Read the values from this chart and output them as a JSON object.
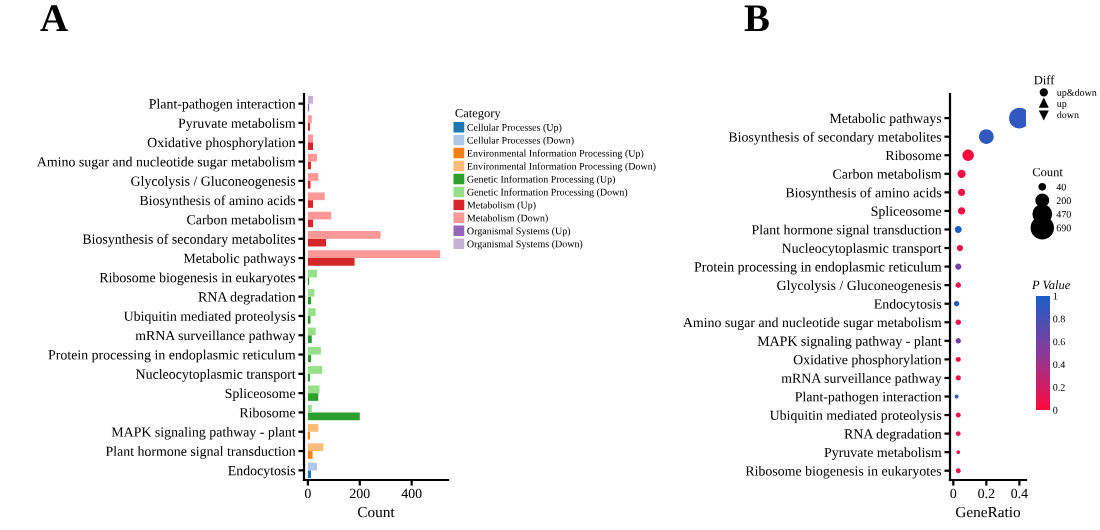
{
  "chart_data": [
    {
      "type": "bar",
      "title": "A",
      "orientation": "horizontal",
      "xlabel": "Count",
      "legend_title": "Category",
      "legend": "right",
      "categories": [
        "Plant-pathogen interaction",
        "Pyruvate metabolism",
        "Oxidative phosphorylation",
        "Amino sugar and nucleotide sugar metabolism",
        "Glycolysis / Gluconeogenesis",
        "Biosynthesis of amino acids",
        "Carbon metabolism",
        "Biosynthesis of secondary metabolites",
        "Metabolic pathways",
        "Ribosome biogenesis in eukaryotes",
        "RNA degradation",
        "Ubiquitin mediated proteolysis",
        "mRNA surveillance pathway",
        "Protein processing in endoplasmic reticulum",
        "Nucleocytoplasmic transport",
        "Spliceosome",
        "Ribosome",
        "MAPK signaling pathway - plant",
        "Plant hormone signal transduction",
        "Endocytosis"
      ],
      "series": [
        {
          "name": "Cellular Processes (Up)",
          "color": "#1f77b4",
          "values": [
            null,
            null,
            null,
            null,
            null,
            null,
            null,
            null,
            null,
            null,
            null,
            null,
            null,
            null,
            null,
            null,
            null,
            null,
            null,
            12
          ]
        },
        {
          "name": "Cellular Processes (Down)",
          "color": "#aec7e8",
          "values": [
            null,
            null,
            null,
            null,
            null,
            null,
            null,
            null,
            null,
            null,
            null,
            null,
            null,
            null,
            null,
            null,
            null,
            null,
            null,
            35
          ]
        },
        {
          "name": "Environmental Information Processing (Up)",
          "color": "#ff7f0e",
          "values": [
            null,
            null,
            null,
            null,
            null,
            null,
            null,
            null,
            null,
            null,
            null,
            null,
            null,
            null,
            null,
            null,
            null,
            8,
            18,
            null
          ]
        },
        {
          "name": "Environmental Information Processing (Down)",
          "color": "#ffbb78",
          "values": [
            null,
            null,
            null,
            null,
            null,
            null,
            null,
            null,
            null,
            null,
            null,
            null,
            null,
            null,
            null,
            null,
            null,
            40,
            60,
            null
          ]
        },
        {
          "name": "Genetic Information Processing (Up)",
          "color": "#2ca02c",
          "values": [
            null,
            null,
            null,
            null,
            null,
            null,
            null,
            null,
            null,
            5,
            12,
            10,
            15,
            12,
            8,
            40,
            200,
            null,
            null,
            null
          ]
        },
        {
          "name": "Genetic Information Processing (Down)",
          "color": "#98df8a",
          "values": [
            null,
            null,
            null,
            null,
            null,
            null,
            null,
            null,
            null,
            35,
            25,
            30,
            30,
            50,
            55,
            45,
            15,
            null,
            null,
            null
          ]
        },
        {
          "name": "Metabolism (Up)",
          "color": "#d62728",
          "values": [
            null,
            8,
            20,
            12,
            10,
            20,
            20,
            70,
            180,
            null,
            null,
            null,
            null,
            null,
            null,
            null,
            null,
            null,
            null,
            null
          ]
        },
        {
          "name": "Metabolism (Down)",
          "color": "#ff9896",
          "values": [
            null,
            15,
            20,
            35,
            40,
            65,
            90,
            280,
            510,
            null,
            null,
            null,
            null,
            null,
            null,
            null,
            null,
            null,
            null,
            null
          ]
        },
        {
          "name": "Organismal Systems (Up)",
          "color": "#9467bd",
          "values": [
            5,
            null,
            null,
            null,
            null,
            null,
            null,
            null,
            null,
            null,
            null,
            null,
            null,
            null,
            null,
            null,
            null,
            null,
            null,
            null
          ]
        },
        {
          "name": "Organismal Systems (Down)",
          "color": "#c5b0d5",
          "values": [
            20,
            null,
            null,
            null,
            null,
            null,
            null,
            null,
            null,
            null,
            null,
            null,
            null,
            null,
            null,
            null,
            null,
            null,
            null,
            null
          ]
        }
      ],
      "xlim": [
        -15,
        540
      ],
      "xticks": [
        0,
        200,
        400
      ]
    },
    {
      "type": "scatter",
      "title": "B",
      "orientation": "horizontal",
      "xlabel": "GeneRatio",
      "legend_title": "Diff",
      "clabel": "P Value",
      "legend": "right",
      "categories": [
        "Metabolic pathways",
        "Biosynthesis of secondary metabolites",
        "Ribosome",
        "Carbon metabolism",
        "Biosynthesis of amino acids",
        "Spliceosome",
        "Plant hormone signal transduction",
        "Nucleocytoplasmic transport",
        "Protein processing in endoplasmic reticulum",
        "Glycolysis / Gluconeogenesis",
        "Endocytosis",
        "Amino sugar and nucleotide sugar metabolism",
        "MAPK signaling pathway - plant",
        "Oxidative phosphorylation",
        "mRNA surveillance pathway",
        "Plant-pathogen interaction",
        "Ubiquitin mediated proteolysis",
        "RNA degradation",
        "Pyruvate metabolism",
        "Ribosome biogenesis in eukaryotes"
      ],
      "series": [
        {
          "name": "up&down",
          "marker": "circle",
          "values": [
            0.4,
            0.2,
            0.09,
            0.05,
            0.05,
            0.05,
            0.03,
            0.04,
            0.03,
            0.03,
            0.02,
            0.03,
            0.03,
            0.03,
            0.03,
            0.02,
            0.03,
            0.03,
            0.03,
            0.03
          ],
          "sizes": [
            690,
            350,
            215,
            110,
            85,
            85,
            78,
            63,
            62,
            50,
            47,
            47,
            48,
            40,
            45,
            25,
            40,
            37,
            23,
            40
          ],
          "colors": [
            "#3058bf",
            "#3058bf",
            "#ff0a3c",
            "#f30f45",
            "#f30f45",
            "#f30f45",
            "#1a5fc8",
            "#e8144f",
            "#7441a3",
            "#e8144f",
            "#255bc3",
            "#e8144f",
            "#7441a3",
            "#f30f45",
            "#e8144f",
            "#3058bf",
            "#e8144f",
            "#e8144f",
            "#e8144f",
            "#e8144f"
          ]
        },
        {
          "name": "up",
          "marker": "triangle",
          "values": [
            null,
            null,
            null,
            null,
            null,
            null,
            null,
            null,
            null,
            null,
            null,
            null,
            null,
            null,
            null,
            null,
            null,
            null,
            null,
            null
          ]
        },
        {
          "name": "down",
          "marker": "triangle_down",
          "values": [
            null,
            null,
            null,
            null,
            null,
            null,
            null,
            null,
            null,
            null,
            null,
            null,
            null,
            null,
            null,
            null,
            null,
            null,
            null,
            null
          ]
        }
      ],
      "size_legend": [
        40,
        200,
        470,
        690
      ],
      "annotations": [
        "Count"
      ],
      "xlim": [
        -0.02,
        0.44
      ],
      "xticks": [
        0,
        0.2,
        0.4
      ],
      "clim": [
        0,
        1
      ],
      "cticks": [
        0,
        0.2,
        0.4,
        0.6,
        0.8,
        1
      ]
    }
  ]
}
